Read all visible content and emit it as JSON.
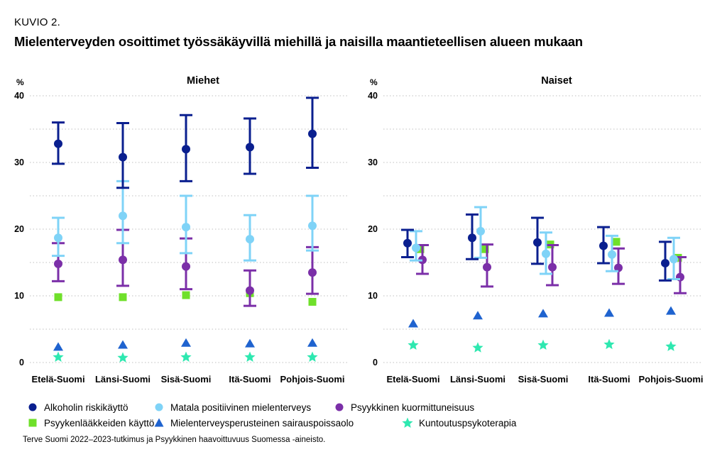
{
  "figure_label": "KUVIO 2.",
  "title": "Mielenterveyden osoittimet työssäkäyvillä miehillä ja naisilla maantieteellisen alueen mukaan",
  "source": "Terve Suomi 2022–2023-tutkimus ja Psyykkinen haavoittuvuus Suomessa -aineisto.",
  "colors": {
    "alkoholi": "#0a1f8f",
    "matala": "#7fd3f7",
    "psyykkinen": "#7b2fa8",
    "laakkeet": "#6fe02a",
    "sairauspoissaolo": "#1f63cf",
    "kuntoutus": "#2ee8b0",
    "grid": "#bfbfbf"
  },
  "legend": [
    {
      "key": "alkoholi",
      "label": "Alkoholin riskikäyttö",
      "marker": "circle"
    },
    {
      "key": "matala",
      "label": "Matala positiivinen mielenterveys",
      "marker": "circle"
    },
    {
      "key": "psyykkinen",
      "label": "Psyykkinen kuormittuneisuus",
      "marker": "circle"
    },
    {
      "key": "laakkeet",
      "label": "Psyykenlääkkeiden käyttö",
      "marker": "square"
    },
    {
      "key": "sairauspoissaolo",
      "label": "Mielenterveysperusteinen sairauspoissaolo",
      "marker": "triangle"
    },
    {
      "key": "kuntoutus",
      "label": "Kuntoutuspsykoterapia",
      "marker": "star"
    }
  ],
  "chart_data": [
    {
      "type": "scatter",
      "title": "Miehet",
      "ylabel": "%",
      "ylim": [
        0,
        40
      ],
      "yticks": [
        "0",
        "10",
        "20",
        "30",
        "40"
      ],
      "categories": [
        "Etelä-Suomi",
        "Länsi-Suomi",
        "Sisä-Suomi",
        "Itä-Suomi",
        "Pohjois-Suomi"
      ],
      "series": [
        {
          "key": "alkoholi",
          "name": "Alkoholin riskikäyttö",
          "values": [
            32.8,
            30.8,
            32.0,
            32.3,
            34.3
          ],
          "lower": [
            29.8,
            26.2,
            27.2,
            28.3,
            29.2
          ],
          "upper": [
            36.0,
            35.9,
            37.1,
            36.6,
            39.7
          ]
        },
        {
          "key": "matala",
          "name": "Matala positiivinen mielenterveys",
          "values": [
            18.7,
            22.0,
            20.3,
            18.5,
            20.5
          ],
          "lower": [
            16.0,
            17.9,
            16.4,
            15.3,
            16.8
          ],
          "upper": [
            21.7,
            27.2,
            25.0,
            22.1,
            25.0
          ]
        },
        {
          "key": "psyykkinen",
          "name": "Psyykkinen kuormittuneisuus",
          "values": [
            14.8,
            15.4,
            14.4,
            10.8,
            13.5
          ],
          "lower": [
            12.2,
            11.5,
            11.0,
            8.5,
            10.3
          ],
          "upper": [
            17.9,
            19.9,
            18.6,
            13.8,
            17.3
          ]
        },
        {
          "key": "laakkeet",
          "name": "Psyykenlääkkeiden käyttö",
          "values": [
            9.8,
            9.8,
            10.1,
            10.4,
            9.1
          ]
        },
        {
          "key": "sairauspoissaolo",
          "name": "Mielenterveysperusteinen sairauspoissaolo",
          "values": [
            2.3,
            2.6,
            2.9,
            2.8,
            2.9
          ]
        },
        {
          "key": "kuntoutus",
          "name": "Kuntoutuspsykoterapia",
          "values": [
            0.8,
            0.7,
            0.8,
            0.8,
            0.8
          ]
        }
      ]
    },
    {
      "type": "scatter",
      "title": "Naiset",
      "ylabel": "%",
      "ylim": [
        0,
        40
      ],
      "yticks": [
        "0",
        "10",
        "20",
        "30",
        "40"
      ],
      "categories": [
        "Etelä-Suomi",
        "Länsi-Suomi",
        "Sisä-Suomi",
        "Itä-Suomi",
        "Pohjois-Suomi"
      ],
      "series": [
        {
          "key": "alkoholi",
          "name": "Alkoholin riskikäyttö",
          "values": [
            17.9,
            18.7,
            18.0,
            17.5,
            14.9
          ],
          "lower": [
            15.8,
            15.5,
            14.8,
            14.9,
            12.3
          ],
          "upper": [
            19.9,
            22.2,
            21.7,
            20.3,
            18.1
          ]
        },
        {
          "key": "matala",
          "name": "Matala positiivinen mielenterveys",
          "values": [
            17.2,
            19.7,
            16.3,
            16.2,
            15.5
          ],
          "lower": [
            15.3,
            15.7,
            13.3,
            13.7,
            12.5
          ],
          "upper": [
            19.7,
            23.3,
            19.5,
            19.0,
            18.7
          ]
        },
        {
          "key": "psyykkinen",
          "name": "Psyykkinen kuormittuneisuus",
          "values": [
            15.4,
            14.3,
            14.3,
            14.2,
            12.8
          ],
          "lower": [
            13.3,
            11.4,
            11.6,
            11.8,
            10.4
          ],
          "upper": [
            17.6,
            17.7,
            17.6,
            17.1,
            15.8
          ]
        },
        {
          "key": "laakkeet",
          "name": "Psyykenlääkkeiden käyttö",
          "values": [
            17.0,
            17.0,
            17.7,
            18.1,
            15.7
          ]
        },
        {
          "key": "sairauspoissaolo",
          "name": "Mielenterveysperusteinen sairauspoissaolo",
          "values": [
            5.8,
            7.0,
            7.3,
            7.4,
            7.7
          ]
        },
        {
          "key": "kuntoutus",
          "name": "Kuntoutuspsykoterapia",
          "values": [
            2.6,
            2.2,
            2.6,
            2.7,
            2.4
          ]
        }
      ]
    }
  ]
}
